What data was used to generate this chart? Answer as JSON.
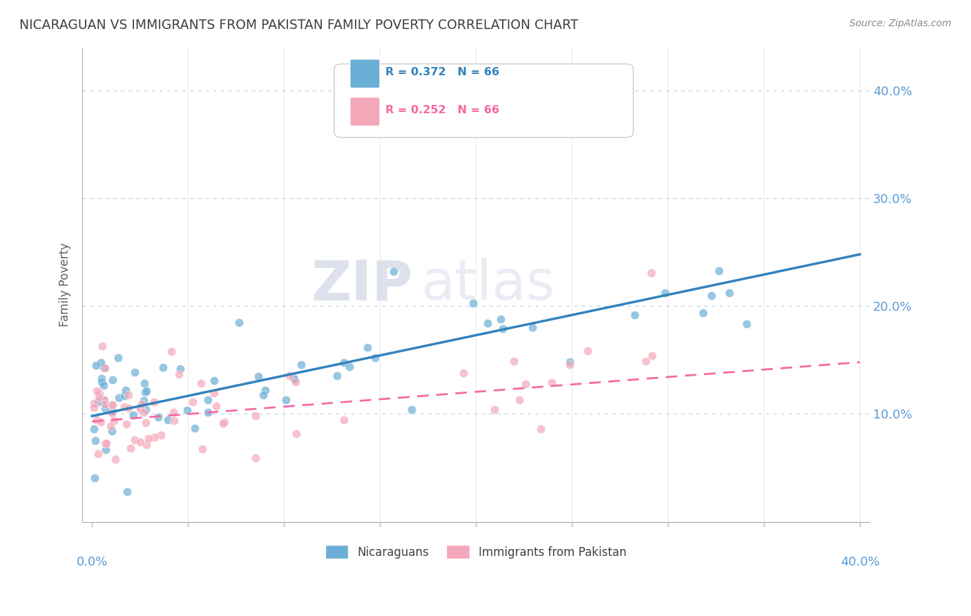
{
  "title": "NICARAGUAN VS IMMIGRANTS FROM PAKISTAN FAMILY POVERTY CORRELATION CHART",
  "source": "Source: ZipAtlas.com",
  "ylabel": "Family Poverty",
  "series1_color": "#6baed6",
  "series2_color": "#f4a7b9",
  "trend1_color": "#3182bd",
  "trend2_color": "#f768a1",
  "watermark_zip": "ZIP",
  "watermark_atlas": "atlas",
  "trend1_x0": 0.0,
  "trend1_x1": 0.4,
  "trend1_y0": 0.098,
  "trend1_y1": 0.248,
  "trend2_x0": 0.0,
  "trend2_x1": 0.4,
  "trend2_y0": 0.093,
  "trend2_y1": 0.148,
  "bg_color": "#ffffff",
  "grid_color": "#c8d8e8",
  "title_color": "#404040",
  "axis_tick_color": "#5b9bd5",
  "legend1_text": "R = 0.372   N = 66",
  "legend2_text": "R = 0.252   N = 66",
  "bottom_label1": "Nicaraguans",
  "bottom_label2": "Immigrants from Pakistan",
  "xlim_min": -0.005,
  "xlim_max": 0.405,
  "ylim_min": 0.0,
  "ylim_max": 0.44
}
